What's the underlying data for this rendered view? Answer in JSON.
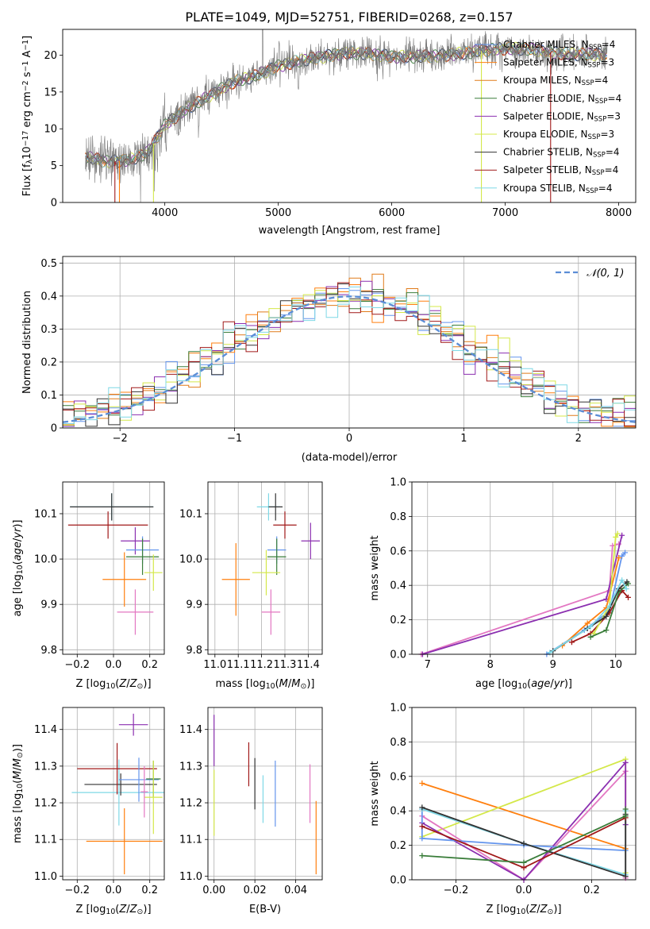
{
  "title": "PLATE=1049, MJD=52751, FIBERID=0268, z=0.157",
  "colors": {
    "Chabrier MILES": "#6495ed",
    "Salpeter MILES": "#ff7f0e",
    "Kroupa MILES": "#e07b1a",
    "Chabrier ELODIE": "#3a7d3a",
    "Salpeter ELODIE": "#8b2fb0",
    "Kroupa ELODIE": "#d4e84a",
    "Chabrier STELIB": "#333333",
    "Salpeter STELIB": "#a01818",
    "Kroupa STELIB": "#7fd8e6",
    "pink": "#e377c2",
    "gauss": "#5b8dd6"
  },
  "chart_data": [
    {
      "type": "line",
      "title": "PLATE=1049, MJD=52751, FIBERID=0268, z=0.157",
      "xlabel": "wavelength [Angstrom, rest frame]",
      "ylabel": "Flux [f_λ10^-17 erg cm^-2 s^-1 A^-1]",
      "xlim": [
        3100,
        8150
      ],
      "ylim": [
        0,
        23.5
      ],
      "xticks": [
        4000,
        5000,
        6000,
        7000,
        8000
      ],
      "yticks": [
        0,
        5,
        10,
        15,
        20
      ],
      "grid": false,
      "legend": "upper right",
      "legend_entries": [
        {
          "label": "Chabrier MILES, N",
          "sub": "SSP",
          "val": "=4",
          "color": "#6495ed"
        },
        {
          "label": "Salpeter MILES, N",
          "sub": "SSP",
          "val": "=3",
          "color": "#ff7f0e"
        },
        {
          "label": "Kroupa MILES, N",
          "sub": "SSP",
          "val": "=4",
          "color": "#e07b1a"
        },
        {
          "label": "Chabrier ELODIE, N",
          "sub": "SSP",
          "val": "=4",
          "color": "#3a7d3a"
        },
        {
          "label": "Salpeter ELODIE, N",
          "sub": "SSP",
          "val": "=3",
          "color": "#8b2fb0"
        },
        {
          "label": "Kroupa ELODIE, N",
          "sub": "SSP",
          "val": "=3",
          "color": "#d4e84a"
        },
        {
          "label": "Chabrier STELIB, N",
          "sub": "SSP",
          "val": "=4",
          "color": "#333333"
        },
        {
          "label": "Salpeter STELIB, N",
          "sub": "SSP",
          "val": "=4",
          "color": "#a01818"
        },
        {
          "label": "Kroupa STELIB, N",
          "sub": "SSP",
          "val": "=4",
          "color": "#7fd8e6"
        }
      ],
      "continuum": [
        [
          3300,
          6.2
        ],
        [
          3500,
          5.5
        ],
        [
          3700,
          5.8
        ],
        [
          3850,
          6.8
        ],
        [
          4000,
          10.5
        ],
        [
          4200,
          12.8
        ],
        [
          4400,
          14.5
        ],
        [
          4600,
          16.3
        ],
        [
          4800,
          17.2
        ],
        [
          5000,
          18.5
        ],
        [
          5200,
          19.3
        ],
        [
          5400,
          19.8
        ],
        [
          5600,
          20.3
        ],
        [
          5800,
          20.2
        ],
        [
          6000,
          19.8
        ],
        [
          6200,
          19.8
        ],
        [
          6400,
          19.9
        ],
        [
          6600,
          20.2
        ],
        [
          6800,
          20.6
        ],
        [
          7000,
          20.9
        ],
        [
          7200,
          20.8
        ],
        [
          7400,
          20.4
        ],
        [
          7600,
          20.1
        ],
        [
          7800,
          20.1
        ],
        [
          7900,
          20.0
        ]
      ]
    },
    {
      "type": "histogram",
      "xlabel": "(data-model)/error",
      "ylabel": "Normed distribution",
      "xlim": [
        -2.5,
        2.5
      ],
      "ylim": [
        0,
        0.52
      ],
      "xticks": [
        -2,
        -1,
        0,
        1,
        2
      ],
      "yticks": [
        0.0,
        0.1,
        0.2,
        0.3,
        0.4,
        0.5
      ],
      "grid": true,
      "legend": "upper right",
      "legend_label": "N(0,1)",
      "bin_width": 0.1,
      "series_count": 9
    },
    {
      "type": "scatter",
      "xlabel": "Z [log10(Z/Z⊙)]",
      "ylabel": "age [log10(age/yr)]",
      "xlim": [
        -0.28,
        0.28
      ],
      "ylim": [
        9.79,
        10.17
      ],
      "xticks": [
        -0.2,
        0.0,
        0.2
      ],
      "yticks": [
        9.8,
        9.9,
        10.0,
        10.1
      ],
      "grid": true,
      "points": [
        {
          "x": -0.01,
          "xerr": 0.23,
          "y": 10.115,
          "yerr": 0.03,
          "color": "#7fd8e6"
        },
        {
          "x": -0.01,
          "xerr": 0.23,
          "y": 10.115,
          "yerr": 0.03,
          "color": "#333333"
        },
        {
          "x": -0.03,
          "xerr": 0.22,
          "y": 10.075,
          "yerr": 0.03,
          "color": "#a01818"
        },
        {
          "x": 0.12,
          "xerr": 0.08,
          "y": 10.04,
          "yerr": 0.03,
          "color": "#8b2fb0"
        },
        {
          "x": 0.16,
          "xerr": 0.09,
          "y": 10.02,
          "yerr": 0.03,
          "color": "#6495ed"
        },
        {
          "x": 0.16,
          "xerr": 0.09,
          "y": 10.005,
          "yerr": 0.04,
          "color": "#3a7d3a"
        },
        {
          "x": 0.22,
          "xerr": 0.05,
          "y": 9.97,
          "yerr": 0.04,
          "color": "#d4e84a"
        },
        {
          "x": 0.06,
          "xerr": 0.12,
          "y": 9.955,
          "yerr": 0.06,
          "color": "#ff7f0e"
        },
        {
          "x": 0.12,
          "xerr": 0.1,
          "y": 9.883,
          "yerr": 0.05,
          "color": "#e377c2"
        }
      ]
    },
    {
      "type": "scatter",
      "xlabel": "mass [log10(M/M⊙)]",
      "ylabel": "",
      "xlim": [
        10.97,
        11.46
      ],
      "ylim": [
        9.79,
        10.17
      ],
      "xticks": [
        11.0,
        11.1,
        11.2,
        11.3,
        11.4
      ],
      "yticks": [
        9.8,
        9.9,
        10.0,
        10.1
      ],
      "grid": true,
      "points": [
        {
          "x": 11.23,
          "xerr": 0.05,
          "y": 10.115,
          "yerr": 0.03,
          "color": "#7fd8e6"
        },
        {
          "x": 11.26,
          "xerr": 0.03,
          "y": 10.115,
          "yerr": 0.03,
          "color": "#333333"
        },
        {
          "x": 11.3,
          "xerr": 0.05,
          "y": 10.075,
          "yerr": 0.03,
          "color": "#a01818"
        },
        {
          "x": 11.41,
          "xerr": 0.04,
          "y": 10.04,
          "yerr": 0.04,
          "color": "#8b2fb0"
        },
        {
          "x": 11.265,
          "xerr": 0.04,
          "y": 10.02,
          "yerr": 0.03,
          "color": "#6495ed"
        },
        {
          "x": 11.265,
          "xerr": 0.04,
          "y": 10.005,
          "yerr": 0.04,
          "color": "#3a7d3a"
        },
        {
          "x": 11.22,
          "xerr": 0.06,
          "y": 9.97,
          "yerr": 0.05,
          "color": "#d4e84a"
        },
        {
          "x": 11.09,
          "xerr": 0.06,
          "y": 9.955,
          "yerr": 0.08,
          "color": "#ff7f0e"
        },
        {
          "x": 11.24,
          "xerr": 0.04,
          "y": 9.883,
          "yerr": 0.05,
          "color": "#e377c2"
        }
      ]
    },
    {
      "type": "line",
      "xlabel": "age [log10(age/yr)]",
      "ylabel": "mass weight",
      "xlim": [
        6.75,
        10.32
      ],
      "ylim": [
        0,
        1.0
      ],
      "xticks": [
        7,
        8,
        9,
        10
      ],
      "yticks": [
        0.0,
        0.2,
        0.4,
        0.6,
        0.8,
        1.0
      ],
      "grid": true,
      "series": [
        {
          "color": "#e377c2",
          "x": [
            6.9,
            9.9,
            9.95,
            10.05
          ],
          "y": [
            0.0,
            0.37,
            0.63,
            0.64
          ]
        },
        {
          "color": "#8b2fb0",
          "x": [
            6.92,
            9.85,
            10.1
          ],
          "y": [
            0.0,
            0.32,
            0.69
          ]
        },
        {
          "color": "#6495ed",
          "x": [
            8.9,
            9.5,
            9.9,
            10.1,
            10.15
          ],
          "y": [
            0.0,
            0.14,
            0.25,
            0.57,
            0.59
          ]
        },
        {
          "color": "#ff7f0e",
          "x": [
            9.15,
            9.55,
            9.85,
            10.05
          ],
          "y": [
            0.05,
            0.18,
            0.27,
            0.56
          ]
        },
        {
          "color": "#a01818",
          "x": [
            9.3,
            9.6,
            9.9,
            10.1,
            10.2
          ],
          "y": [
            0.07,
            0.12,
            0.24,
            0.37,
            0.33
          ]
        },
        {
          "color": "#d4e84a",
          "x": [
            9.65,
            9.9,
            10.0,
            10.03
          ],
          "y": [
            0.12,
            0.28,
            0.68,
            0.7
          ]
        },
        {
          "color": "#3a7d3a",
          "x": [
            9.6,
            9.85,
            10.05,
            10.2
          ],
          "y": [
            0.1,
            0.14,
            0.36,
            0.41
          ]
        },
        {
          "color": "#333333",
          "x": [
            9.0,
            9.55,
            9.85,
            10.05,
            10.18
          ],
          "y": [
            0.02,
            0.15,
            0.22,
            0.38,
            0.42
          ]
        },
        {
          "color": "#7fd8e6",
          "x": [
            8.95,
            9.6,
            9.9,
            10.1,
            10.17
          ],
          "y": [
            0.01,
            0.16,
            0.28,
            0.43,
            0.38
          ]
        }
      ]
    },
    {
      "type": "scatter",
      "xlabel": "Z [log10(Z/Z⊙)]",
      "ylabel": "mass [log10(M/M⊙)]",
      "xlim": [
        -0.28,
        0.28
      ],
      "ylim": [
        10.99,
        11.46
      ],
      "xticks": [
        -0.2,
        0.0,
        0.2
      ],
      "yticks": [
        11.0,
        11.1,
        11.2,
        11.3,
        11.4
      ],
      "grid": true,
      "points": [
        {
          "x": 0.03,
          "xerr": 0.26,
          "y": 11.228,
          "yerr": 0.09,
          "color": "#7fd8e6"
        },
        {
          "x": 0.04,
          "xerr": 0.2,
          "y": 11.25,
          "yerr": 0.03,
          "color": "#333333"
        },
        {
          "x": 0.02,
          "xerr": 0.22,
          "y": 11.293,
          "yerr": 0.07,
          "color": "#a01818"
        },
        {
          "x": 0.11,
          "xerr": 0.08,
          "y": 11.413,
          "yerr": 0.03,
          "color": "#8b2fb0"
        },
        {
          "x": 0.14,
          "xerr": 0.11,
          "y": 11.263,
          "yerr": 0.06,
          "color": "#6495ed"
        },
        {
          "x": 0.22,
          "xerr": 0.04,
          "y": 11.265,
          "yerr": 0.05,
          "color": "#3a7d3a"
        },
        {
          "x": 0.22,
          "xerr": 0.05,
          "y": 11.215,
          "yerr": 0.1,
          "color": "#d4e84a"
        },
        {
          "x": 0.06,
          "xerr": 0.21,
          "y": 11.095,
          "yerr": 0.09,
          "color": "#ff7f0e"
        },
        {
          "x": 0.17,
          "xerr": 0.02,
          "y": 11.23,
          "yerr": 0.07,
          "color": "#e377c2"
        }
      ]
    },
    {
      "type": "scatter",
      "xlabel": "E(B-V)",
      "ylabel": "",
      "xlim": [
        -0.003,
        0.053
      ],
      "ylim": [
        10.99,
        11.46
      ],
      "xticks": [
        0.0,
        0.02,
        0.04
      ],
      "yticks": [
        11.0,
        11.1,
        11.2,
        11.3,
        11.4
      ],
      "grid": true,
      "points": [
        {
          "x": 0.0,
          "y": 11.37,
          "yerr": 0.07,
          "color": "#8b2fb0"
        },
        {
          "x": 0.0,
          "y": 11.2,
          "yerr": 0.09,
          "color": "#d4e84a"
        },
        {
          "x": 0.017,
          "y": 11.305,
          "yerr": 0.06,
          "color": "#a01818"
        },
        {
          "x": 0.02,
          "y": 11.252,
          "yerr": 0.07,
          "color": "#333333"
        },
        {
          "x": 0.024,
          "y": 11.21,
          "yerr": 0.065,
          "color": "#7fd8e6"
        },
        {
          "x": 0.03,
          "y": 11.225,
          "yerr": 0.09,
          "color": "#6495ed"
        },
        {
          "x": 0.047,
          "y": 11.225,
          "yerr": 0.08,
          "color": "#e377c2"
        },
        {
          "x": 0.05,
          "y": 11.105,
          "yerr": 0.1,
          "color": "#ff7f0e"
        }
      ]
    },
    {
      "type": "line",
      "xlabel": "Z [log10(Z/Z⊙)]",
      "ylabel": "mass weight",
      "xlim": [
        -0.33,
        0.33
      ],
      "ylim": [
        0,
        1.0
      ],
      "xticks": [
        -0.2,
        0.0,
        0.2
      ],
      "yticks": [
        0.0,
        0.2,
        0.4,
        0.6,
        0.8,
        1.0
      ],
      "grid": true,
      "series": [
        {
          "color": "#ff7f0e",
          "x": [
            -0.3,
            0.3
          ],
          "y": [
            0.56,
            0.18
          ]
        },
        {
          "color": "#d4e84a",
          "x": [
            -0.3,
            0.3,
            0.3
          ],
          "y": [
            0.25,
            0.7,
            0.04
          ]
        },
        {
          "color": "#e377c2",
          "x": [
            -0.3,
            0.0,
            0.3,
            0.3
          ],
          "y": [
            0.37,
            0.0,
            0.63,
            0.01
          ]
        },
        {
          "color": "#8b2fb0",
          "x": [
            -0.3,
            0.0,
            0.3,
            0.3
          ],
          "y": [
            0.33,
            0.0,
            0.68,
            0.32
          ]
        },
        {
          "color": "#6495ed",
          "x": [
            -0.3,
            -0.3,
            0.0,
            0.3
          ],
          "y": [
            0.41,
            0.24,
            0.2,
            0.17
          ]
        },
        {
          "color": "#7fd8e6",
          "x": [
            -0.3,
            0.0,
            0.3,
            0.3
          ],
          "y": [
            0.41,
            0.21,
            0.03,
            0.4
          ]
        },
        {
          "color": "#333333",
          "x": [
            -0.3,
            0.0,
            0.3,
            0.3
          ],
          "y": [
            0.42,
            0.21,
            0.02,
            0.38
          ]
        },
        {
          "color": "#a01818",
          "x": [
            -0.3,
            0.0,
            0.3
          ],
          "y": [
            0.31,
            0.07,
            0.36
          ]
        },
        {
          "color": "#3a7d3a",
          "x": [
            -0.3,
            0.0,
            0.3,
            0.3
          ],
          "y": [
            0.14,
            0.1,
            0.37,
            0.41
          ]
        }
      ]
    }
  ]
}
